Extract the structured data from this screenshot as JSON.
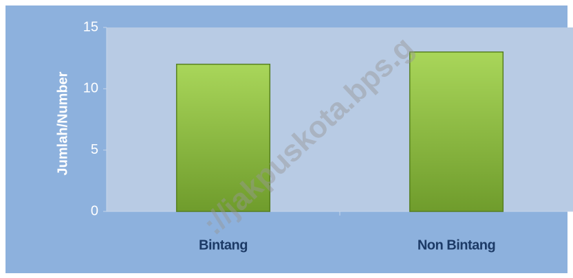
{
  "chart_data": {
    "type": "bar",
    "y_label": "Jumlah/Number",
    "categories": [
      "Bintang",
      "Non Bintang"
    ],
    "values": [
      12,
      13
    ],
    "color": "#8fc13e",
    "ylim": [
      0,
      15
    ],
    "yticks": [
      0,
      5,
      10,
      15
    ],
    "watermark": "://jakpuskota.bps.g"
  }
}
